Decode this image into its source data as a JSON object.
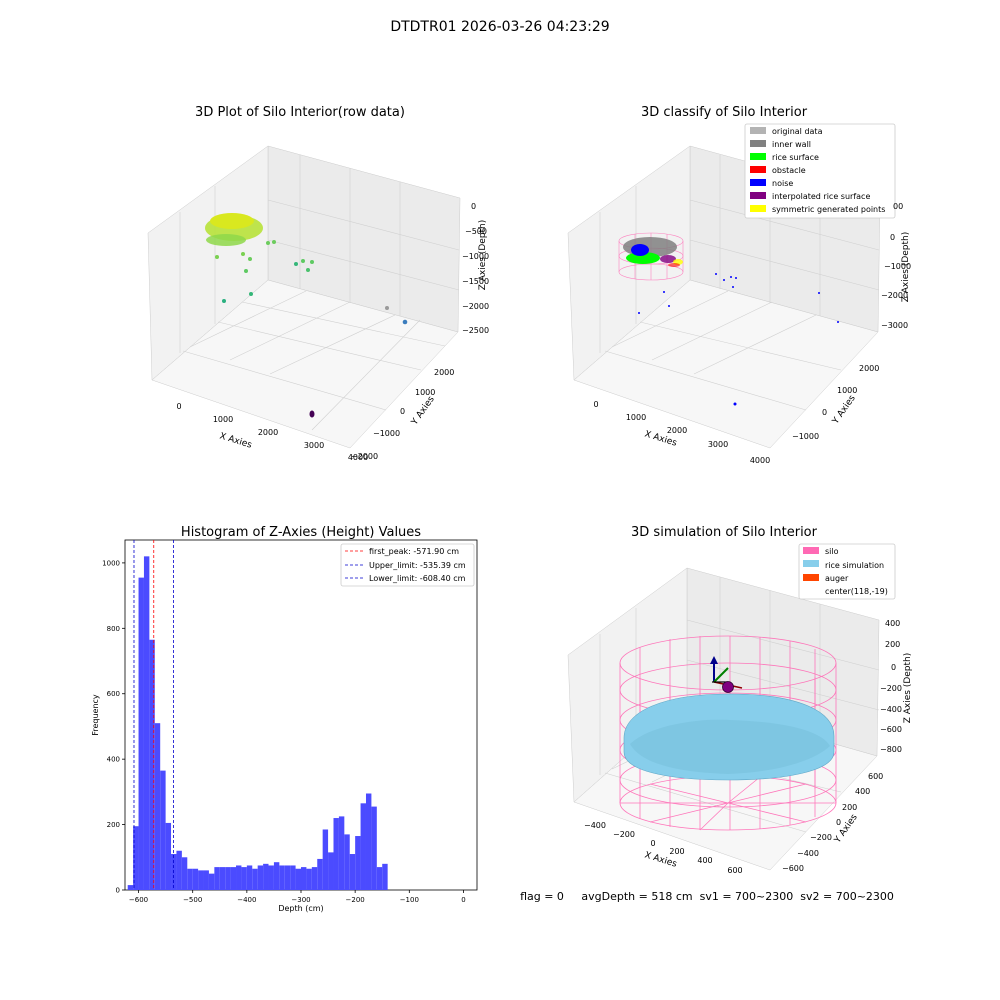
{
  "figure": {
    "suptitle": "DTDTR01 2026-03-26 04:23:29"
  },
  "panel_raw": {
    "title": "3D Plot of Silo Interior(row data)",
    "xlabel": "X Axies",
    "ylabel": "Y Axies",
    "zlabel": "Z Axies (Depth)",
    "x_ticks": [
      "0",
      "1000",
      "2000",
      "3000",
      "4000"
    ],
    "y_ticks": [
      "−2000",
      "−1000",
      "0",
      "1000",
      "2000"
    ],
    "z_ticks": [
      "0",
      "−500",
      "−1000",
      "−1500",
      "−2000",
      "−2500"
    ]
  },
  "panel_classify": {
    "title": "3D classify of Silo Interior",
    "xlabel": "X Axies",
    "ylabel": "Y Axies",
    "zlabel": "Z Axies (Depth)",
    "x_ticks": [
      "0",
      "1000",
      "2000",
      "3000",
      "4000"
    ],
    "y_ticks": [
      "−1000",
      "0",
      "1000",
      "2000"
    ],
    "z_ticks": [
      "0",
      "−1000",
      "−2000",
      "−3000"
    ],
    "legend": [
      {
        "label": "original data",
        "color": "#b3b3b3"
      },
      {
        "label": "inner wall",
        "color": "#808080"
      },
      {
        "label": "rice surface",
        "color": "#00ff00"
      },
      {
        "label": "obstacle",
        "color": "#ff0000"
      },
      {
        "label": "noise",
        "color": "#0000ff"
      },
      {
        "label": "interpolated rice surface",
        "color": "#800080"
      },
      {
        "label": "symmetric generated points",
        "color": "#ffff00"
      }
    ]
  },
  "chart_data": [
    {
      "type": "bar",
      "title": "Histogram of Z-Axies (Height) Values",
      "xlabel": "Depth (cm)",
      "ylabel": "Frequency",
      "xlim": [
        -625,
        25
      ],
      "ylim": [
        0,
        1070
      ],
      "bin_start": -620,
      "bin_width": 10,
      "values": [
        15,
        195,
        955,
        1020,
        765,
        510,
        365,
        205,
        110,
        120,
        100,
        65,
        65,
        60,
        60,
        50,
        70,
        70,
        70,
        70,
        75,
        70,
        75,
        65,
        75,
        80,
        75,
        85,
        75,
        75,
        75,
        65,
        70,
        65,
        70,
        95,
        185,
        115,
        220,
        225,
        170,
        110,
        165,
        265,
        295,
        255,
        70,
        80
      ],
      "x_ticks": [
        -600,
        -500,
        -400,
        -300,
        -200,
        -100,
        0
      ],
      "y_ticks": [
        0,
        200,
        400,
        600,
        800,
        1000
      ],
      "bar_color": "#4b4bff",
      "vlines": [
        {
          "x": -571.9,
          "label": "first_peak: -571.90 cm",
          "color": "#ff0000"
        },
        {
          "x": -535.39,
          "label": "Upper_limit: -535.39 cm",
          "color": "#0000cc"
        },
        {
          "x": -608.4,
          "label": "Lower_limit: -608.40 cm",
          "color": "#0000cc"
        }
      ],
      "legend_position": "upper-right"
    }
  ],
  "panel_sim": {
    "title": "3D simulation of Silo Interior",
    "xlabel": "X Axies",
    "ylabel": "Y Axies",
    "zlabel": "Z Axies (Depth)",
    "x_ticks": [
      "−400",
      "−200",
      "0",
      "200",
      "400",
      "600"
    ],
    "y_ticks": [
      "−600",
      "−400",
      "−200",
      "0",
      "200",
      "400",
      "600"
    ],
    "z_ticks": [
      "400",
      "200",
      "0",
      "−200",
      "−400",
      "−600",
      "−800"
    ],
    "legend": [
      {
        "label": "silo",
        "color": "#ff69b4"
      },
      {
        "label": "rice simulation",
        "color": "#87ceeb"
      },
      {
        "label": "auger",
        "color": "#ff4500"
      },
      {
        "label": "center(118,-19)",
        "color": ""
      }
    ]
  },
  "footer": {
    "text": "flag = 0     avgDepth = 518 cm  sv1 = 700~2300  sv2 = 700~2300"
  }
}
